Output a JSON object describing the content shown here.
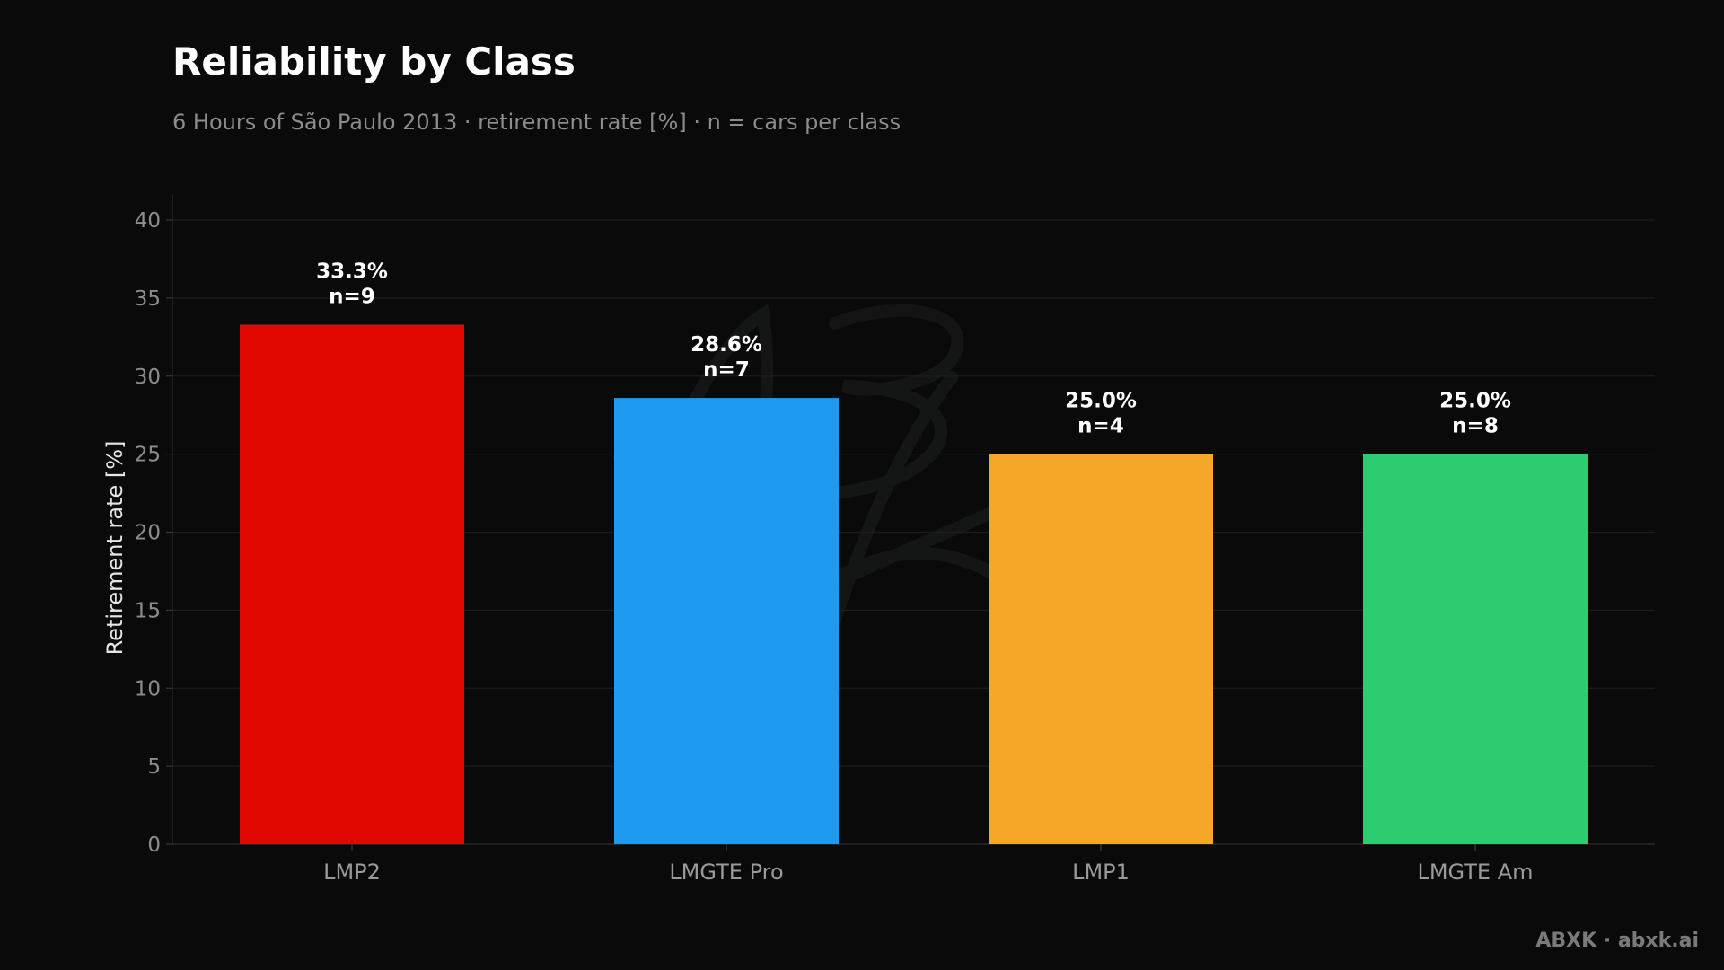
{
  "title": "Reliability by Class",
  "subtitle": "6 Hours of São Paulo 2013 · retirement rate [%] · n = cars per class",
  "footer": "ABXK · abxk.ai",
  "chart_data": {
    "type": "bar",
    "title": "Reliability by Class",
    "subtitle": "6 Hours of São Paulo 2013 · retirement rate [%] · n = cars per class",
    "xlabel": "",
    "ylabel": "Retirement rate [%]",
    "ylim": [
      0,
      40
    ],
    "yticks": [
      0,
      5,
      10,
      15,
      20,
      25,
      30,
      35,
      40
    ],
    "grid": true,
    "categories": [
      "LMP2",
      "LMGTE Pro",
      "LMP1",
      "LMGTE Am"
    ],
    "values": [
      33.3,
      28.6,
      25.0,
      25.0
    ],
    "counts": [
      9,
      7,
      4,
      8
    ],
    "value_labels": [
      "33.3%",
      "28.6%",
      "25.0%",
      "25.0%"
    ],
    "count_labels": [
      "n=9",
      "n=7",
      "n=4",
      "n=8"
    ],
    "colors": [
      "#e00800",
      "#1e9bf0",
      "#f5a828",
      "#2ecc71"
    ]
  }
}
